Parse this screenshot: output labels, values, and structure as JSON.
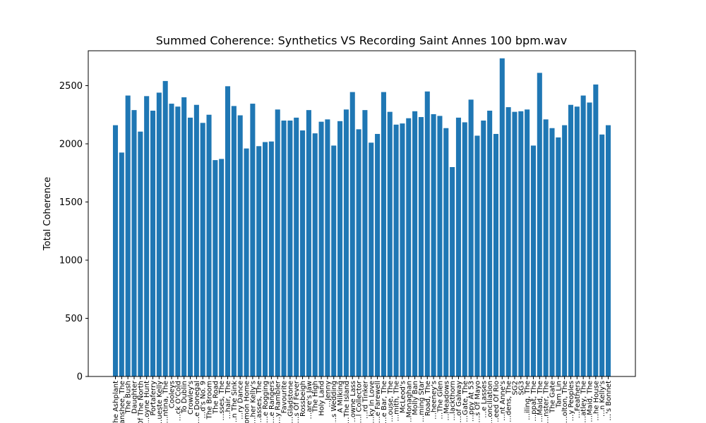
{
  "chart_data": {
    "type": "bar",
    "title": "Summed Coherence: Synthetics VS Recording Saint Annes 100 bpm.wav",
    "xlabel": "",
    "ylabel": "Total Coherence",
    "ylim": [
      0,
      2800
    ],
    "yticks": [
      0,
      500,
      1000,
      1500,
      2000,
      2500
    ],
    "grid": false,
    "bar_color": "#1f77b4",
    "categories": [
      "The Ashplant",
      "Banshee, The",
      "The Bush",
      "Daughter",
      "…h Of The North",
      "…oyne Hunt",
      "Portaferry",
      "…ueste Kelly",
      "…ntina, The",
      "Cooleys",
      "…ck O'Cold",
      "To Dublin",
      "Crowley's",
      "…e Donegal",
      "…d's No. 9",
      "The Broom",
      "The Road",
      "…sses, The",
      "…hair, The",
      "…n The Sink",
      "…ry Dance",
      "…nomon Home",
      "…her Kelly's",
      "…asses, The",
      "…e Rogging",
      "…e Rangers",
      "…y Rambler",
      "Favourite",
      "…Gladstone",
      "…s Of Fever",
      "Rossbeigh",
      "…are's Jaw",
      "The High",
      "Holy Land",
      "…Jenny",
      "…s Wedding",
      "A Milking",
      "…The Island",
      "…owne Lass",
      "…l Collector",
      "…rd Tinker",
      "…ky In Love",
      "…e Farewell",
      "…e Bar, The",
      "…ouse, The",
      "…mith, The",
      "McLeod's",
      "…Monaghan",
      "Molly Ban",
      "…ming Star",
      "Road, The",
      "…heeney's",
      "…The Glen",
      "…Meadows",
      "…lackthorn",
      "…of Galway",
      "…Gate, The",
      "…ppy At 53",
      "…s Of Mayo",
      "…e Lasses",
      "…onciliation",
      "…eed Of Rio",
      "…nt Anne's",
      "…dens, The",
      "SG2",
      "SG3",
      "…iling, The",
      "…ppat, The",
      "…Maid, The",
      "…nster, The",
      "The Gate",
      "Tam Lin",
      "…olton, The",
      "…y Peoples",
      "…Feathers",
      "…atley, The",
      "…Maid, The",
      "…he House",
      "…n Kelly's",
      "…'s Bonnet"
    ],
    "values": [
      2160,
      1925,
      2415,
      2290,
      2105,
      2410,
      2285,
      2440,
      2540,
      2345,
      2320,
      2400,
      2225,
      2335,
      2180,
      2250,
      1860,
      1870,
      2495,
      2325,
      2245,
      1960,
      2345,
      1980,
      2015,
      2020,
      2295,
      2200,
      2200,
      2225,
      2115,
      2290,
      2090,
      2190,
      2210,
      1985,
      2195,
      2295,
      2445,
      2125,
      2290,
      2010,
      2085,
      2445,
      2275,
      2165,
      2175,
      2220,
      2280,
      2230,
      2450,
      2255,
      2240,
      2135,
      1800,
      2225,
      2185,
      2380,
      2070,
      2200,
      2285,
      2085,
      2735,
      2315,
      2275,
      2280,
      2295,
      1985,
      2610,
      2210,
      2135,
      2055,
      2160,
      2335,
      2320,
      2415,
      2355,
      2510,
      2080,
      2160
    ]
  }
}
